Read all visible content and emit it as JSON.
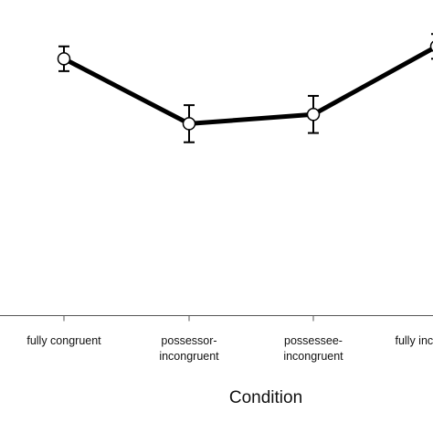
{
  "chart_data": {
    "type": "line",
    "xlabel": "Condition",
    "ylabel": "",
    "categories": [
      [
        "fully congruent"
      ],
      [
        "possessor-",
        "incongruent"
      ],
      [
        "possessee-",
        "incongruent"
      ],
      [
        "fully incongruent"
      ]
    ],
    "series": [
      {
        "values": [
          0.81,
          0.6,
          0.63,
          0.85
        ],
        "error": [
          0.04,
          0.06,
          0.06,
          0.04
        ]
      }
    ],
    "ylim": [
      -0.4,
      1.0
    ],
    "grid": false,
    "legend": "none",
    "colors": {
      "line": "#000000",
      "marker_fill": "#ffffff",
      "axis": "#555555"
    }
  }
}
